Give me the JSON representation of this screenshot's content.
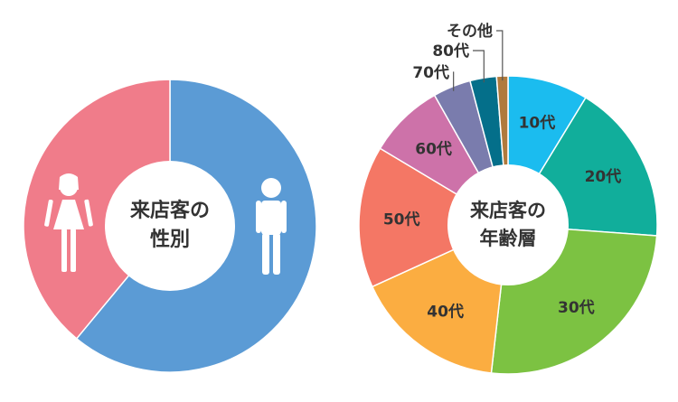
{
  "chart_data": [
    {
      "type": "pie",
      "variant": "donut",
      "title": "来店客の性別",
      "title_lines": [
        "来店客の",
        "性別"
      ],
      "slices": [
        {
          "key": "male",
          "value": 61,
          "color": "#5b9bd5",
          "icon": "male-figure-icon"
        },
        {
          "key": "female",
          "value": 39,
          "color": "#f07c8a",
          "icon": "female-figure-icon"
        }
      ]
    },
    {
      "type": "pie",
      "variant": "donut",
      "title": "来店客の年齢層",
      "title_lines": [
        "来店客の",
        "年齢層"
      ],
      "slices": [
        {
          "label": "10代",
          "value": 8.5,
          "color": "#1bbcef"
        },
        {
          "label": "20代",
          "value": 17,
          "color": "#11ae9b"
        },
        {
          "label": "30代",
          "value": 25,
          "color": "#7cc242"
        },
        {
          "label": "40代",
          "value": 16,
          "color": "#fbad41"
        },
        {
          "label": "50代",
          "value": 15,
          "color": "#f47765"
        },
        {
          "label": "60代",
          "value": 8,
          "color": "#cd72a9"
        },
        {
          "label": "70代",
          "value": 4,
          "color": "#7a7cad"
        },
        {
          "label": "80代",
          "value": 2.8,
          "color": "#046f8a"
        },
        {
          "label": "その他",
          "value": 1.2,
          "color": "#b07a3c"
        }
      ]
    }
  ]
}
